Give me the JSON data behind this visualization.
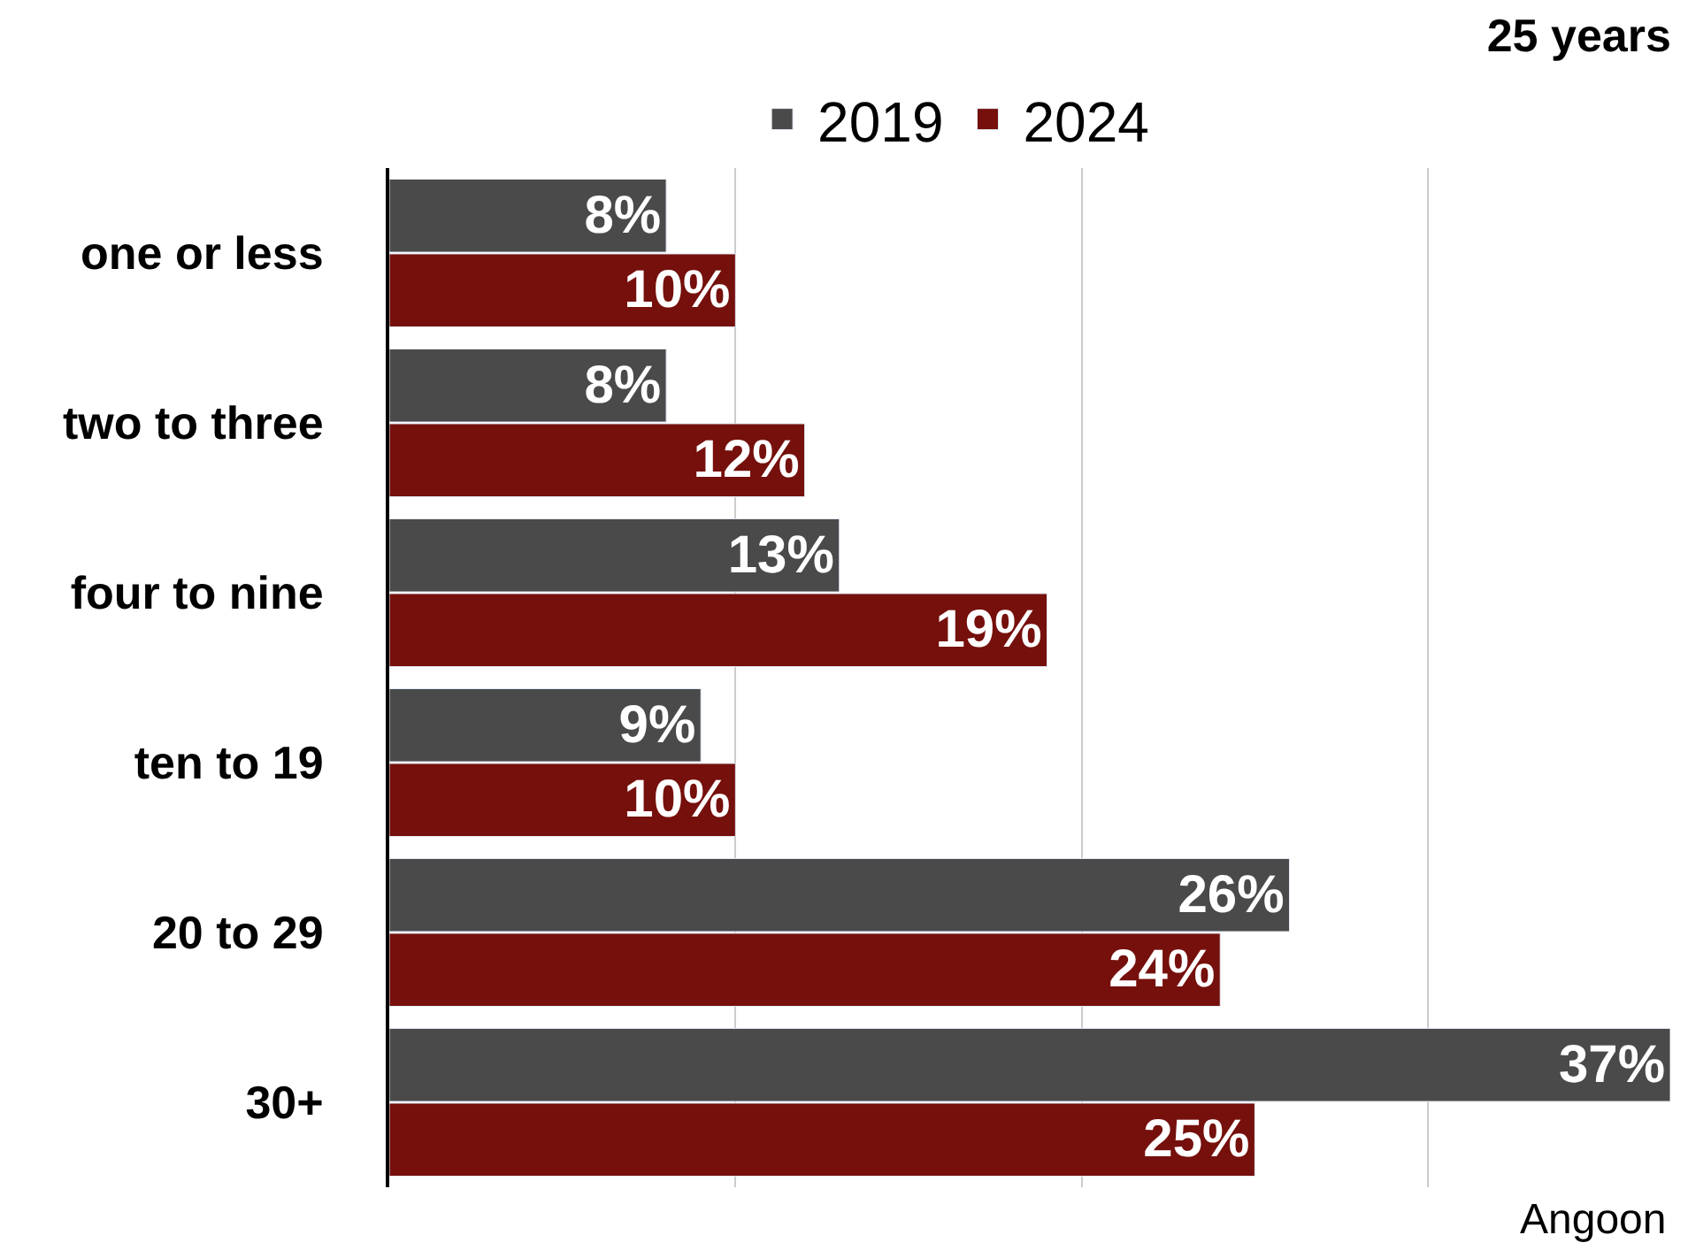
{
  "chart_data": {
    "type": "bar",
    "orientation": "horizontal",
    "title": "25 years",
    "categories": [
      "one or less",
      "two to three",
      "four to nine",
      "ten to 19",
      "20 to 29",
      "30+"
    ],
    "series": [
      {
        "name": "2019",
        "color": "#4a4a4a",
        "values": [
          8,
          8,
          13,
          9,
          26,
          37
        ],
        "value_labels": [
          "8%",
          "8%",
          "13%",
          "9%",
          "26%",
          "37%"
        ]
      },
      {
        "name": "2024",
        "color": "#75100c",
        "values": [
          10,
          12,
          19,
          10,
          24,
          25
        ],
        "value_labels": [
          "10%",
          "12%",
          "19%",
          "10%",
          "24%",
          "25%"
        ]
      }
    ],
    "xlim": [
      0,
      37
    ],
    "xticks": [
      {
        "value": 0,
        "label": null
      },
      {
        "value": 10,
        "label": null
      },
      {
        "value": 20,
        "label": null
      },
      {
        "value": 30,
        "label": null
      }
    ],
    "grid": "x",
    "legend": "top",
    "tick_labels": "y",
    "annotations": [
      "Angoon"
    ]
  }
}
